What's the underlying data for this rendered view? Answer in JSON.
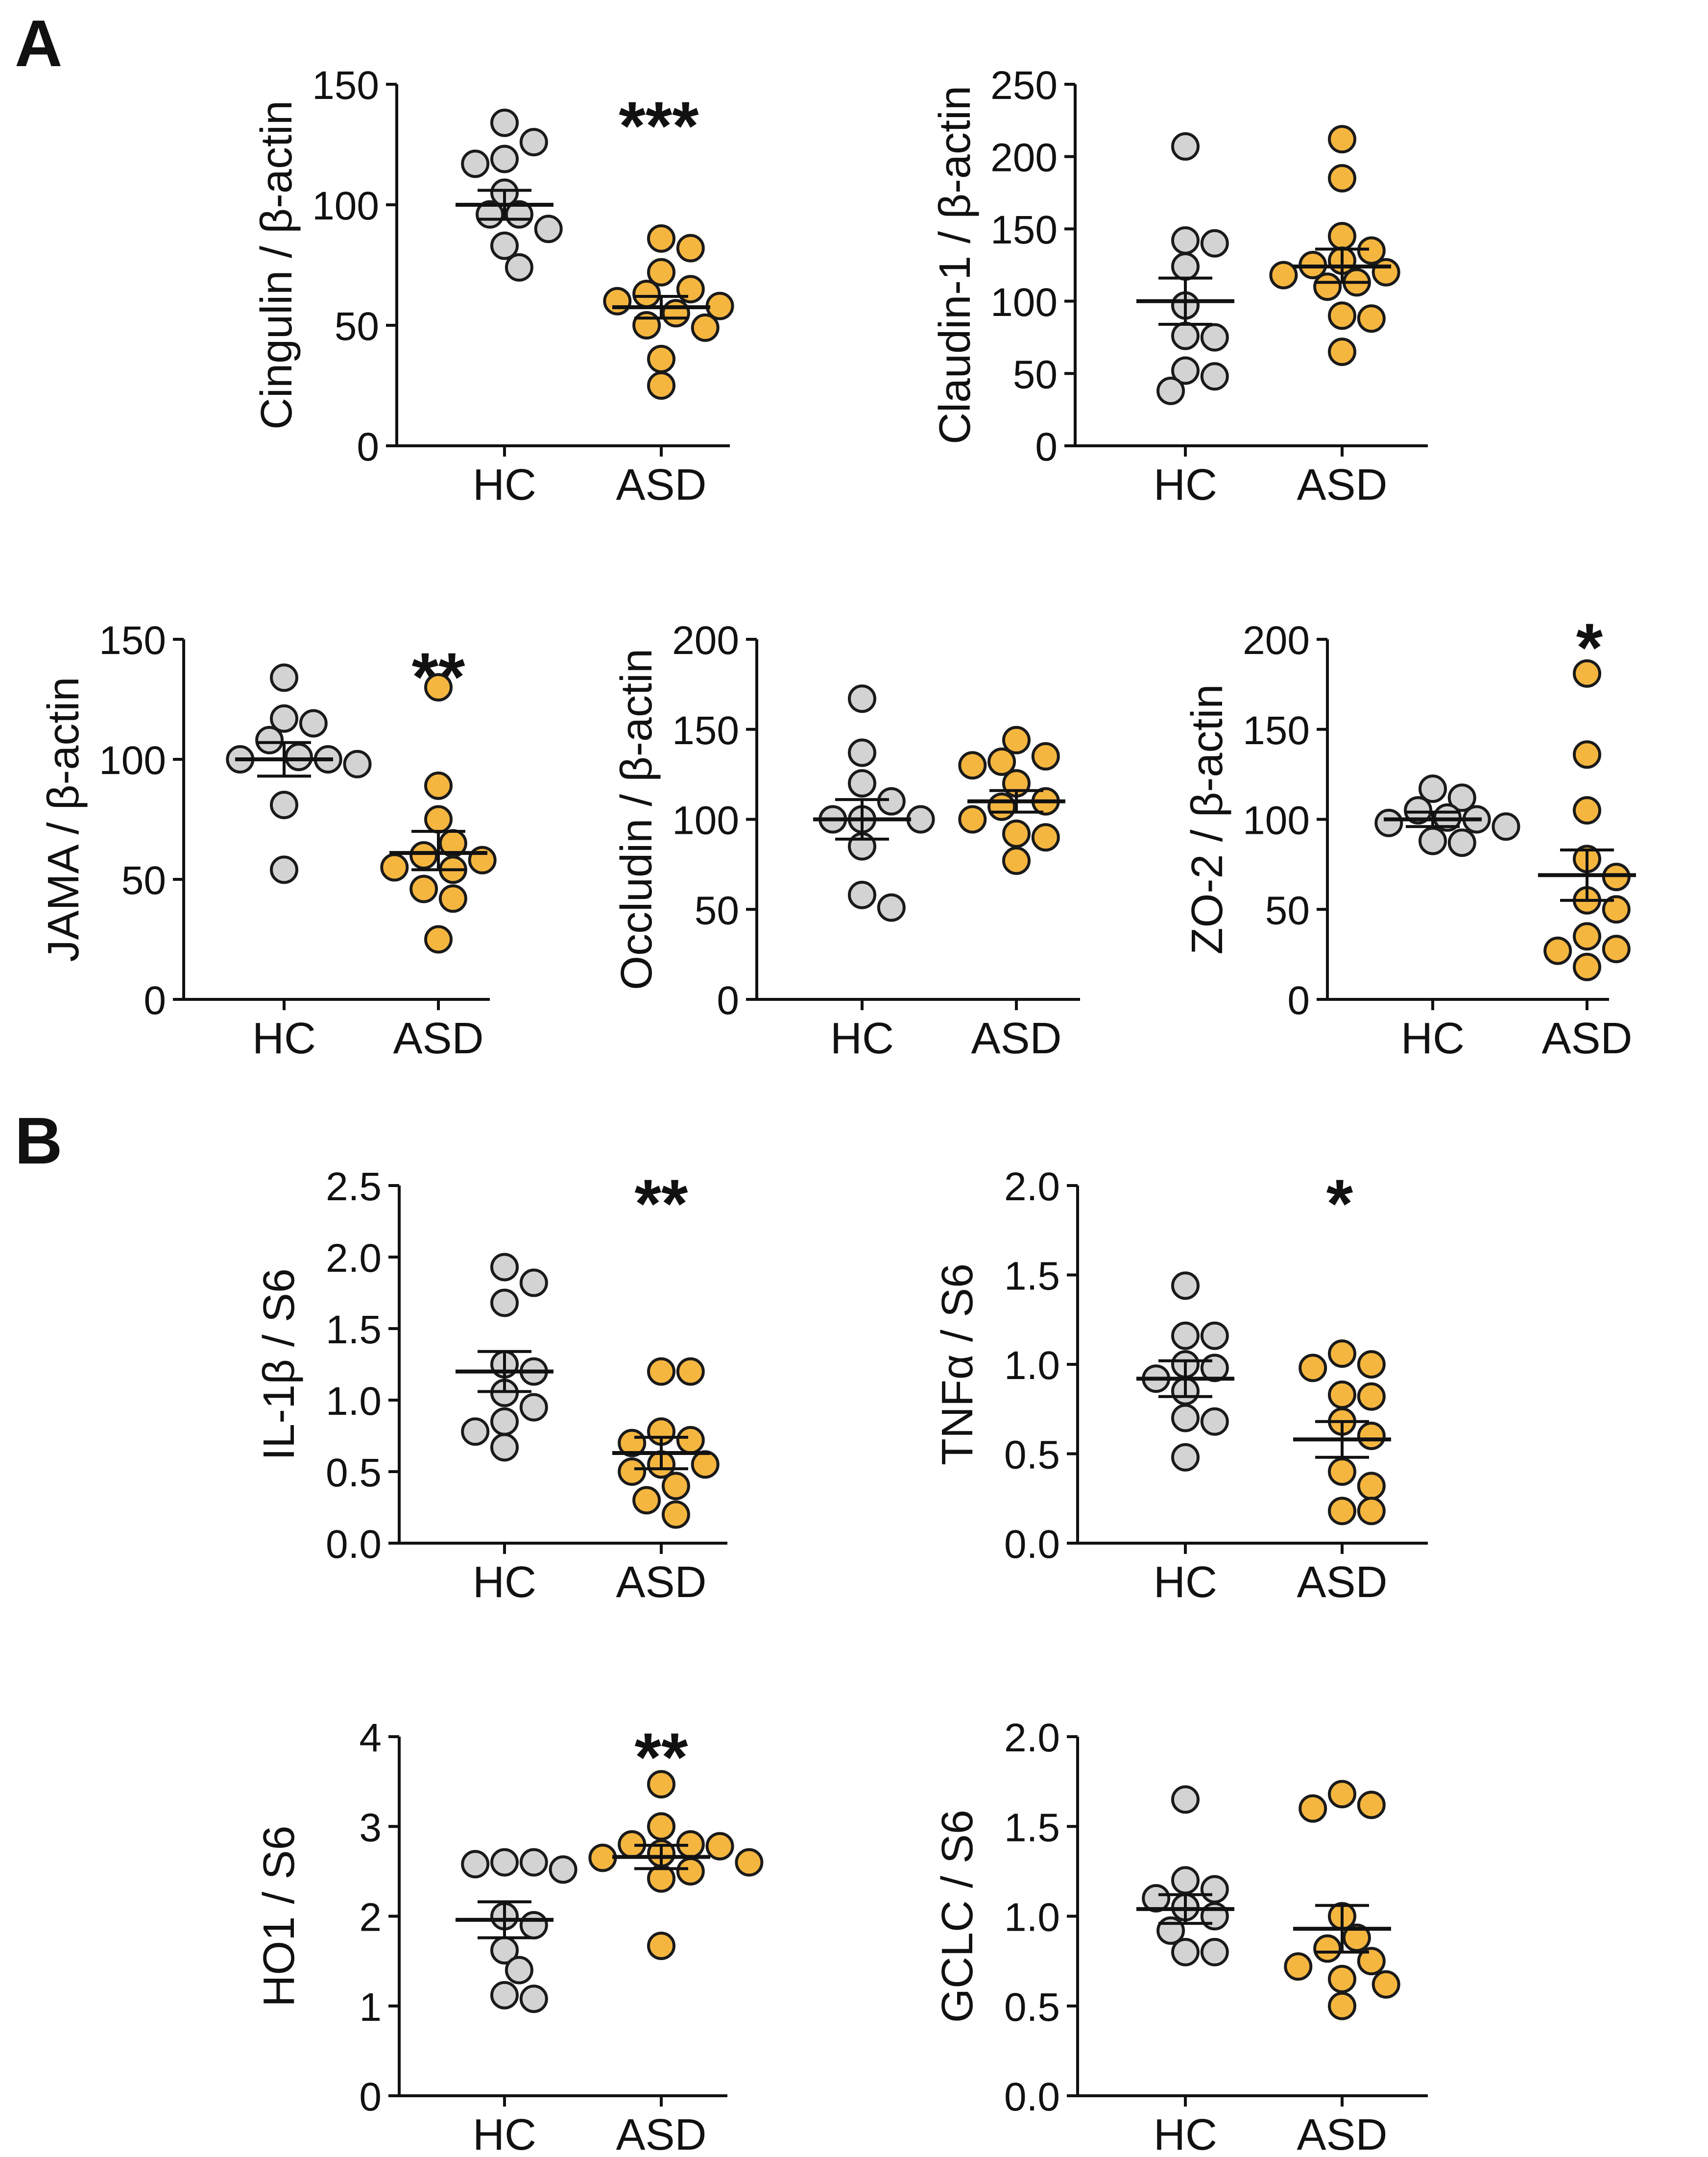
{
  "panels": [
    {
      "label": "A"
    },
    {
      "label": "B"
    }
  ],
  "colors": {
    "HC": "#d3d3d3",
    "ASD": "#f5b640",
    "outline": "#1a1a1a"
  },
  "chart_data": [
    {
      "type": "scatter",
      "panel": "A",
      "ylabel": "Cingulin / β-actin",
      "categories": [
        "HC",
        "ASD"
      ],
      "ylim": [
        0,
        150
      ],
      "yticks": [
        0,
        50,
        100,
        150
      ],
      "significance": "***",
      "series": [
        {
          "name": "HC",
          "values": [
            134,
            126,
            119,
            117,
            105,
            96,
            96,
            90,
            83,
            74
          ],
          "mean": 100,
          "sem_low": 94,
          "sem_high": 106
        },
        {
          "name": "ASD",
          "values": [
            86,
            82,
            72,
            65,
            63,
            60,
            58,
            55,
            50,
            49,
            36,
            25
          ],
          "mean": 57.5,
          "sem_low": 53,
          "sem_high": 62
        }
      ]
    },
    {
      "type": "scatter",
      "panel": "A",
      "ylabel": "Claudin-1 / β-actin",
      "categories": [
        "HC",
        "ASD"
      ],
      "ylim": [
        0,
        250
      ],
      "yticks": [
        0,
        50,
        100,
        150,
        200,
        250
      ],
      "significance": "",
      "series": [
        {
          "name": "HC",
          "values": [
            207,
            142,
            140,
            124,
            97,
            76,
            75,
            52,
            48,
            38
          ],
          "mean": 100,
          "sem_low": 84,
          "sem_high": 116
        },
        {
          "name": "ASD",
          "values": [
            212,
            185,
            145,
            135,
            128,
            125,
            120,
            118,
            113,
            110,
            90,
            88,
            65
          ],
          "mean": 124,
          "sem_low": 113,
          "sem_high": 136
        }
      ]
    },
    {
      "type": "scatter",
      "panel": "A",
      "ylabel": "JAMA / β-actin",
      "categories": [
        "HC",
        "ASD"
      ],
      "ylim": [
        0,
        150
      ],
      "yticks": [
        0,
        50,
        100,
        150
      ],
      "significance": "**",
      "series": [
        {
          "name": "HC",
          "values": [
            134,
            117,
            115,
            108,
            101,
            100,
            100,
            98,
            81,
            54
          ],
          "mean": 100,
          "sem_low": 93,
          "sem_high": 107
        },
        {
          "name": "ASD",
          "values": [
            130,
            89,
            75,
            65,
            60,
            58,
            55,
            54,
            46,
            42,
            25
          ],
          "mean": 61,
          "sem_low": 54,
          "sem_high": 70
        }
      ]
    },
    {
      "type": "scatter",
      "panel": "A",
      "ylabel": "Occludin / β-actin",
      "categories": [
        "HC",
        "ASD"
      ],
      "ylim": [
        0,
        200
      ],
      "yticks": [
        0,
        50,
        100,
        150,
        200
      ],
      "significance": "",
      "series": [
        {
          "name": "HC",
          "values": [
            167,
            137,
            120,
            110,
            100,
            100,
            100,
            85,
            58,
            51
          ],
          "mean": 100,
          "sem_low": 89,
          "sem_high": 111
        },
        {
          "name": "ASD",
          "values": [
            144,
            135,
            132,
            130,
            120,
            110,
            107,
            100,
            92,
            90,
            77
          ],
          "mean": 110,
          "sem_low": 104,
          "sem_high": 116
        }
      ]
    },
    {
      "type": "scatter",
      "panel": "A",
      "ylabel": "ZO-2 / β-actin",
      "categories": [
        "HC",
        "ASD"
      ],
      "ylim": [
        0,
        200
      ],
      "yticks": [
        0,
        50,
        100,
        150,
        200
      ],
      "significance": "*",
      "series": [
        {
          "name": "HC",
          "values": [
            117,
            112,
            105,
            101,
            100,
            98,
            96,
            88,
            87
          ],
          "mean": 100,
          "sem_low": 96,
          "sem_high": 104
        },
        {
          "name": "ASD",
          "values": [
            181,
            136,
            105,
            78,
            68,
            55,
            50,
            35,
            28,
            27,
            18
          ],
          "mean": 69,
          "sem_low": 55,
          "sem_high": 83
        }
      ]
    },
    {
      "type": "scatter",
      "panel": "B",
      "ylabel": "IL-1β / S6",
      "categories": [
        "HC",
        "ASD"
      ],
      "ylim": [
        0,
        2.5
      ],
      "yticks": [
        0.0,
        0.5,
        1.0,
        1.5,
        2.0,
        2.5
      ],
      "significance": "**",
      "series": [
        {
          "name": "HC",
          "values": [
            1.93,
            1.82,
            1.68,
            1.25,
            1.2,
            1.05,
            0.95,
            0.85,
            0.78,
            0.67
          ],
          "mean": 1.2,
          "sem_low": 1.06,
          "sem_high": 1.34
        },
        {
          "name": "ASD",
          "values": [
            1.2,
            1.2,
            0.78,
            0.72,
            0.7,
            0.55,
            0.55,
            0.5,
            0.4,
            0.3,
            0.2
          ],
          "mean": 0.63,
          "sem_low": 0.52,
          "sem_high": 0.74
        }
      ]
    },
    {
      "type": "scatter",
      "panel": "B",
      "ylabel": "TNFα / S6",
      "categories": [
        "HC",
        "ASD"
      ],
      "ylim": [
        0,
        2.0
      ],
      "yticks": [
        0.0,
        0.5,
        1.0,
        1.5,
        2.0
      ],
      "significance": "*",
      "series": [
        {
          "name": "HC",
          "values": [
            1.44,
            1.16,
            1.16,
            1.0,
            0.98,
            0.92,
            0.85,
            0.7,
            0.68,
            0.48
          ],
          "mean": 0.92,
          "sem_low": 0.82,
          "sem_high": 1.02
        },
        {
          "name": "ASD",
          "values": [
            1.06,
            1.0,
            0.98,
            0.83,
            0.82,
            0.68,
            0.6,
            0.4,
            0.32,
            0.18,
            0.18
          ],
          "mean": 0.58,
          "sem_low": 0.48,
          "sem_high": 0.68
        }
      ]
    },
    {
      "type": "scatter",
      "panel": "B",
      "ylabel": "HO1 / S6",
      "categories": [
        "HC",
        "ASD"
      ],
      "ylim": [
        0,
        4
      ],
      "yticks": [
        0,
        1,
        2,
        3,
        4
      ],
      "significance": "**",
      "series": [
        {
          "name": "HC",
          "values": [
            2.6,
            2.6,
            2.58,
            2.52,
            2.0,
            1.9,
            1.62,
            1.4,
            1.12,
            1.08
          ],
          "mean": 1.96,
          "sem_low": 1.76,
          "sem_high": 2.16
        },
        {
          "name": "ASD",
          "values": [
            3.47,
            3.0,
            2.8,
            2.8,
            2.78,
            2.7,
            2.65,
            2.6,
            2.5,
            2.42,
            1.67
          ],
          "mean": 2.66,
          "sem_low": 2.53,
          "sem_high": 2.79
        },
        {
          "name": "_pad",
          "values": []
        }
      ]
    },
    {
      "type": "scatter",
      "panel": "B",
      "ylabel": "GCLC / S6",
      "categories": [
        "HC",
        "ASD"
      ],
      "ylim": [
        0,
        2.0
      ],
      "yticks": [
        0.0,
        0.5,
        1.0,
        1.5,
        2.0
      ],
      "significance": "",
      "series": [
        {
          "name": "HC",
          "values": [
            1.65,
            1.2,
            1.15,
            1.1,
            1.05,
            1.0,
            0.92,
            0.8,
            0.8
          ],
          "mean": 1.04,
          "sem_low": 0.96,
          "sem_high": 1.12
        },
        {
          "name": "ASD",
          "values": [
            1.68,
            1.62,
            1.6,
            1.0,
            0.88,
            0.82,
            0.75,
            0.72,
            0.65,
            0.62,
            0.5
          ],
          "mean": 0.93,
          "sem_low": 0.8,
          "sem_high": 1.06
        }
      ]
    }
  ]
}
